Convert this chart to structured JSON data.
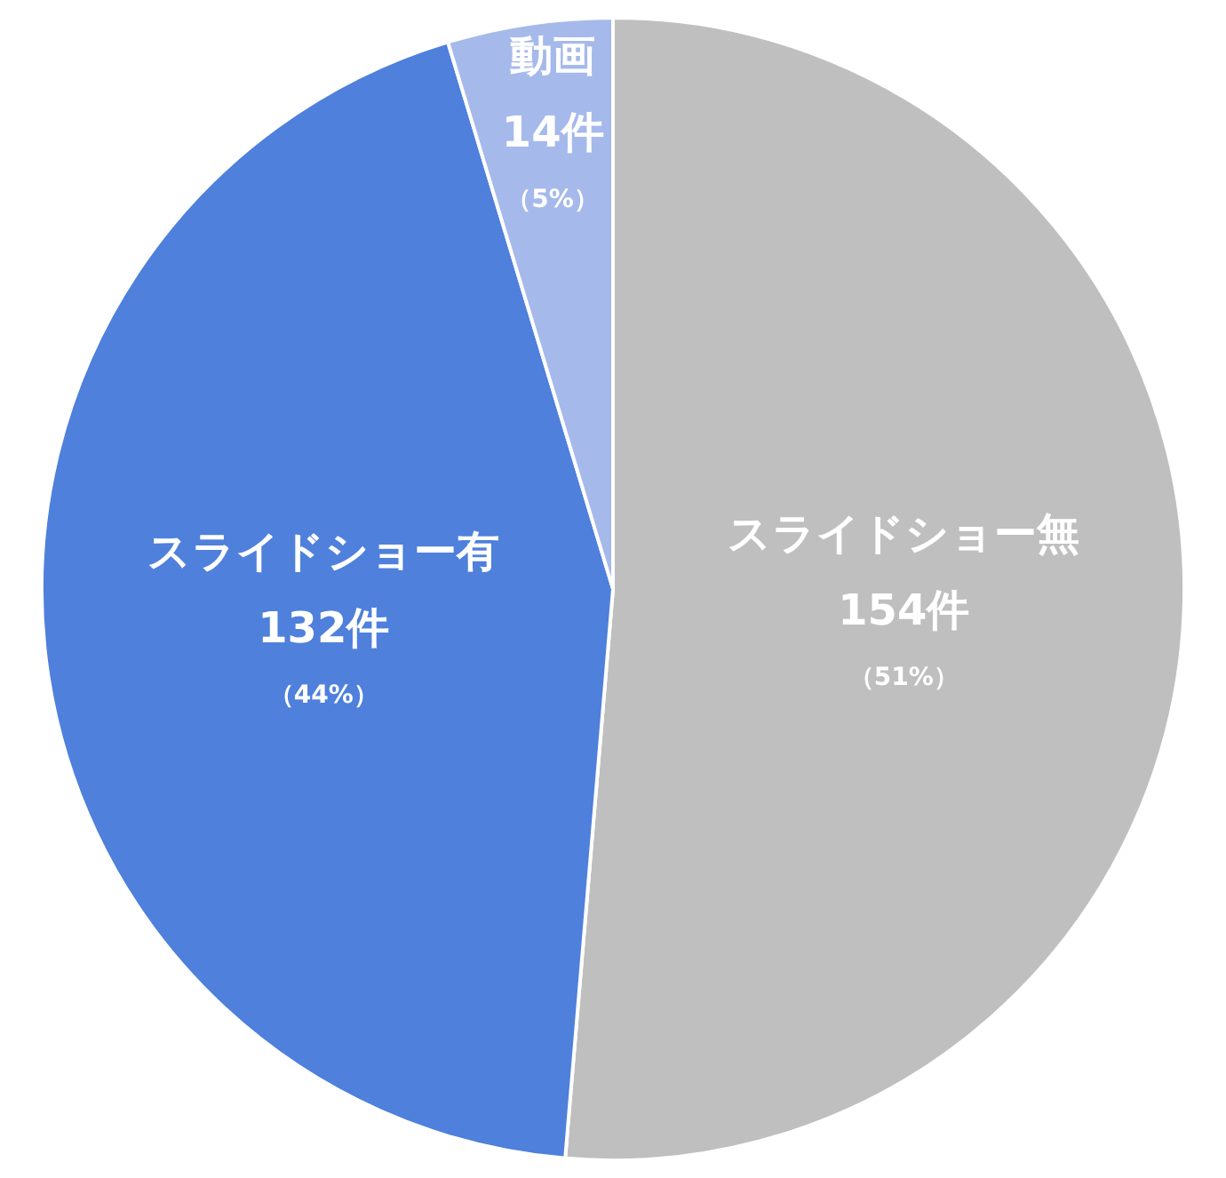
{
  "chart_data": {
    "type": "pie",
    "categories": [
      "スライドショー無",
      "スライドショー有",
      "動画"
    ],
    "values": [
      154,
      132,
      14
    ],
    "colors": [
      "#bfbfbf",
      "#4e80dc",
      "#a6b9eb"
    ],
    "value_labels": [
      "154件",
      "132件",
      "14件"
    ],
    "annotations": [
      "（51%）",
      "（44%）",
      "（5%）"
    ],
    "legend": false
  }
}
